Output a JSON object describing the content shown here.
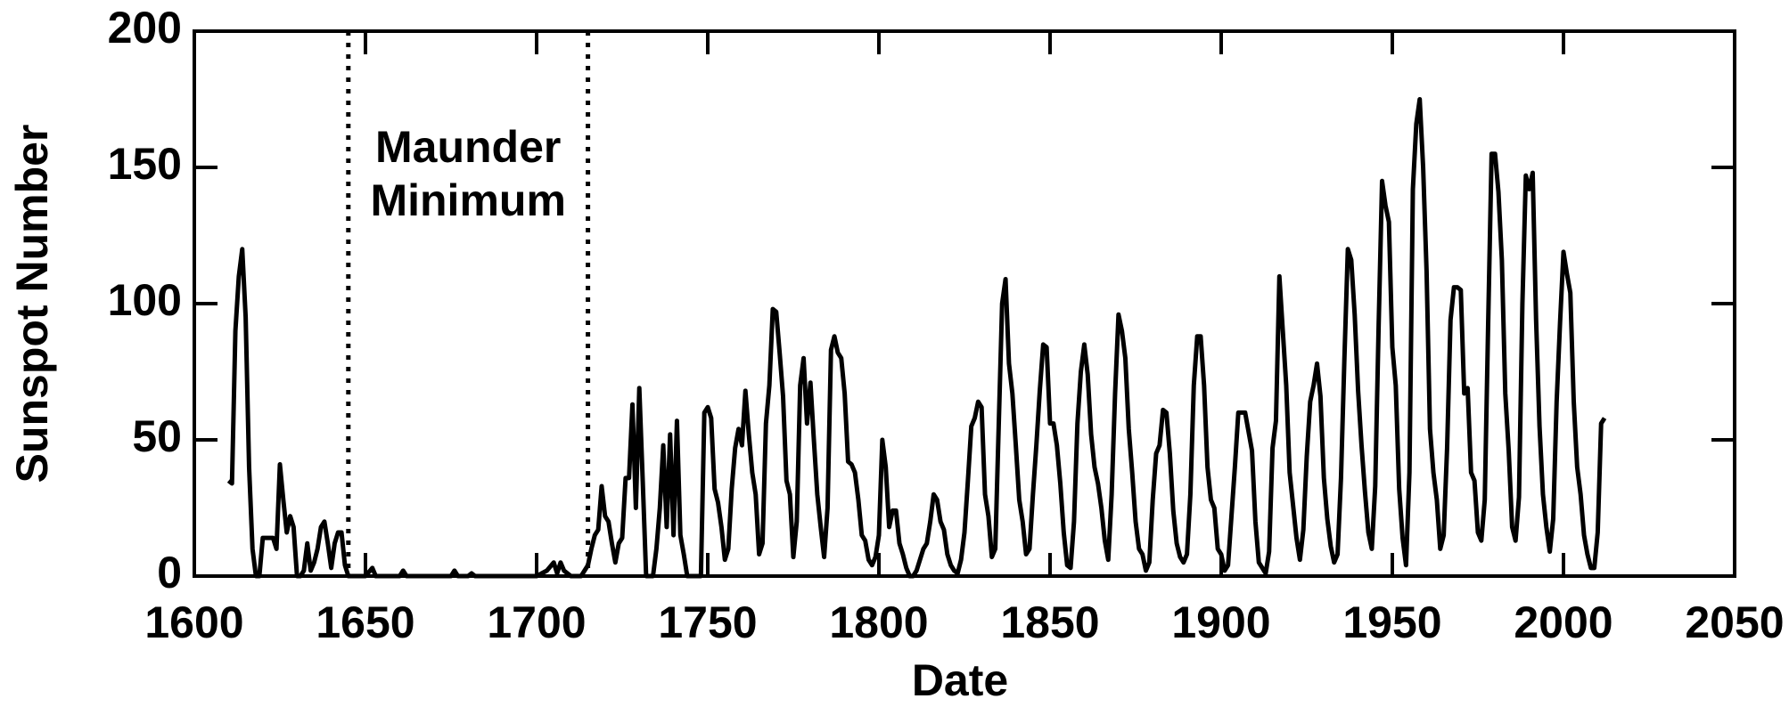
{
  "chart_data": {
    "type": "line",
    "xlabel": "Date",
    "ylabel": "Sunspot Number",
    "annotation": [
      "Maunder",
      "Minimum"
    ],
    "vlines": [
      1645,
      1715
    ],
    "xlim": [
      1600,
      2050
    ],
    "xticks": [
      1600,
      1650,
      1700,
      1750,
      1800,
      1850,
      1900,
      1950,
      2000,
      2050
    ],
    "ylim": [
      0,
      200
    ],
    "yticks": [
      0,
      50,
      100,
      150,
      200
    ],
    "color": "#000000",
    "x": [
      1610,
      1611,
      1612,
      1613,
      1614,
      1615,
      1616,
      1617,
      1618,
      1619,
      1620,
      1621,
      1622,
      1623,
      1624,
      1625,
      1626,
      1627,
      1628,
      1629,
      1630,
      1631,
      1632,
      1633,
      1634,
      1635,
      1636,
      1637,
      1638,
      1639,
      1640,
      1641,
      1642,
      1643,
      1644,
      1645,
      1650,
      1652,
      1653,
      1660,
      1661,
      1662,
      1675,
      1676,
      1677,
      1680,
      1681,
      1682,
      1700,
      1703,
      1705,
      1706,
      1707,
      1708,
      1710,
      1713,
      1715,
      1716,
      1717,
      1718,
      1719,
      1720,
      1721,
      1722,
      1723,
      1724,
      1725,
      1726,
      1727,
      1728,
      1729,
      1730,
      1731,
      1732,
      1733,
      1734,
      1735,
      1736,
      1737,
      1738,
      1739,
      1740,
      1741,
      1742,
      1743,
      1744,
      1748,
      1749,
      1750,
      1751,
      1752,
      1753,
      1754,
      1755,
      1756,
      1757,
      1758,
      1759,
      1760,
      1761,
      1762,
      1763,
      1764,
      1765,
      1766,
      1767,
      1768,
      1769,
      1770,
      1771,
      1772,
      1773,
      1774,
      1775,
      1776,
      1777,
      1778,
      1779,
      1780,
      1781,
      1782,
      1783,
      1784,
      1785,
      1786,
      1787,
      1788,
      1789,
      1790,
      1791,
      1792,
      1793,
      1794,
      1795,
      1796,
      1797,
      1798,
      1799,
      1800,
      1801,
      1802,
      1803,
      1804,
      1805,
      1806,
      1807,
      1808,
      1809,
      1810,
      1811,
      1812,
      1813,
      1814,
      1815,
      1816,
      1817,
      1818,
      1819,
      1820,
      1821,
      1822,
      1823,
      1824,
      1825,
      1826,
      1827,
      1828,
      1829,
      1830,
      1831,
      1832,
      1833,
      1834,
      1835,
      1836,
      1837,
      1838,
      1839,
      1840,
      1841,
      1842,
      1843,
      1844,
      1845,
      1846,
      1847,
      1848,
      1849,
      1850,
      1851,
      1852,
      1853,
      1854,
      1855,
      1856,
      1857,
      1858,
      1859,
      1860,
      1861,
      1862,
      1863,
      1864,
      1865,
      1866,
      1867,
      1868,
      1869,
      1870,
      1871,
      1872,
      1873,
      1874,
      1875,
      1876,
      1877,
      1878,
      1879,
      1880,
      1881,
      1882,
      1883,
      1884,
      1885,
      1886,
      1887,
      1888,
      1889,
      1890,
      1891,
      1892,
      1893,
      1894,
      1895,
      1896,
      1897,
      1898,
      1899,
      1900,
      1901,
      1902,
      1903,
      1904,
      1905,
      1906,
      1907,
      1908,
      1909,
      1910,
      1911,
      1912,
      1913,
      1914,
      1915,
      1916,
      1917,
      1918,
      1919,
      1920,
      1921,
      1922,
      1923,
      1924,
      1925,
      1926,
      1927,
      1928,
      1929,
      1930,
      1931,
      1932,
      1933,
      1934,
      1935,
      1936,
      1937,
      1938,
      1939,
      1940,
      1941,
      1942,
      1943,
      1944,
      1945,
      1946,
      1947,
      1948,
      1949,
      1950,
      1951,
      1952,
      1953,
      1954,
      1955,
      1956,
      1957,
      1958,
      1959,
      1960,
      1961,
      1962,
      1963,
      1964,
      1965,
      1966,
      1967,
      1968,
      1969,
      1970,
      1971,
      1972,
      1973,
      1974,
      1975,
      1976,
      1977,
      1978,
      1979,
      1980,
      1981,
      1982,
      1983,
      1984,
      1985,
      1986,
      1987,
      1988,
      1989,
      1990,
      1991,
      1992,
      1993,
      1994,
      1995,
      1996,
      1997,
      1998,
      1999,
      2000,
      2001,
      2002,
      2003,
      2004,
      2005,
      2006,
      2007,
      2008,
      2009,
      2010,
      2011,
      2012
    ],
    "values": [
      35,
      34,
      90,
      110,
      120,
      95,
      40,
      10,
      0,
      0,
      14,
      14,
      14,
      14,
      10,
      41,
      28,
      16,
      22,
      18,
      0,
      0,
      2,
      12,
      2,
      5,
      10,
      18,
      20,
      12,
      3,
      12,
      16,
      16,
      4,
      0,
      0,
      3,
      0,
      0,
      2,
      0,
      0,
      2,
      0,
      0,
      1,
      0,
      0,
      2,
      5,
      1,
      5,
      2,
      0,
      0,
      4,
      10,
      15,
      17,
      33,
      22,
      20,
      12,
      5,
      12,
      14,
      36,
      36,
      63,
      25,
      69,
      35,
      0,
      0,
      0,
      10,
      25,
      48,
      18,
      52,
      15,
      57,
      15,
      8,
      0,
      0,
      60,
      62,
      58,
      32,
      27,
      18,
      6,
      10,
      32,
      47,
      54,
      48,
      68,
      52,
      38,
      30,
      8,
      12,
      56,
      70,
      98,
      97,
      82,
      66,
      35,
      30,
      7,
      20,
      70,
      80,
      56,
      71,
      50,
      30,
      18,
      7,
      25,
      83,
      88,
      82,
      80,
      67,
      42,
      41,
      38,
      28,
      15,
      13,
      6,
      4,
      7,
      15,
      50,
      40,
      18,
      24,
      24,
      12,
      8,
      3,
      0,
      0,
      2,
      6,
      10,
      12,
      20,
      30,
      28,
      20,
      17,
      8,
      4,
      2,
      1,
      6,
      16,
      35,
      55,
      58,
      64,
      62,
      30,
      22,
      7,
      10,
      55,
      100,
      109,
      78,
      67,
      48,
      28,
      20,
      8,
      10,
      30,
      48,
      68,
      85,
      84,
      56,
      56,
      48,
      34,
      16,
      4,
      3,
      20,
      56,
      75,
      85,
      74,
      52,
      40,
      34,
      25,
      13,
      6,
      30,
      67,
      96,
      90,
      80,
      54,
      38,
      20,
      10,
      8,
      2,
      5,
      28,
      45,
      48,
      61,
      60,
      45,
      24,
      12,
      7,
      5,
      8,
      30,
      70,
      88,
      88,
      70,
      40,
      28,
      25,
      10,
      8,
      2,
      4,
      22,
      40,
      60,
      60,
      60,
      53,
      46,
      20,
      5,
      3,
      1,
      9,
      47,
      57,
      110,
      90,
      70,
      38,
      26,
      14,
      6,
      17,
      44,
      64,
      70,
      78,
      66,
      36,
      21,
      11,
      5,
      8,
      36,
      80,
      120,
      116,
      96,
      68,
      48,
      31,
      16,
      10,
      33,
      92,
      145,
      136,
      130,
      84,
      70,
      32,
      14,
      4,
      38,
      142,
      166,
      175,
      150,
      112,
      54,
      38,
      28,
      10,
      15,
      47,
      94,
      106,
      106,
      105,
      67,
      69,
      38,
      35,
      16,
      13,
      28,
      93,
      155,
      155,
      141,
      116,
      67,
      46,
      18,
      13,
      29,
      100,
      147,
      142,
      148,
      94,
      55,
      30,
      18,
      9,
      21,
      64,
      93,
      119,
      111,
      104,
      64,
      40,
      30,
      15,
      8,
      3,
      3,
      16,
      56,
      58
    ]
  }
}
